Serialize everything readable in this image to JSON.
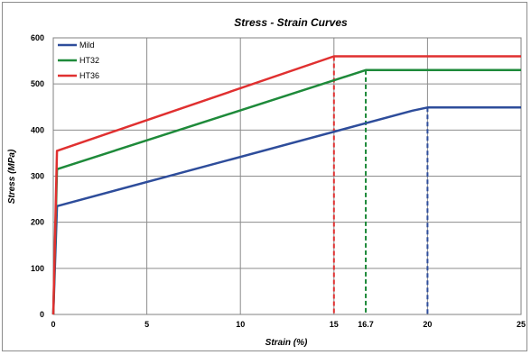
{
  "chart_data": {
    "type": "line",
    "title": "Stress - Strain Curves",
    "xlabel": "Strain (%)",
    "ylabel": "Stress (MPa)",
    "xlim": [
      0,
      25
    ],
    "ylim": [
      0,
      600
    ],
    "x_ticks": [
      "0",
      "5",
      "10",
      "15",
      "20",
      "25"
    ],
    "y_ticks": [
      "0",
      "100",
      "200",
      "300",
      "400",
      "500",
      "600"
    ],
    "extra_x_tick": "16.7",
    "grid": true,
    "legend_position": "top-left",
    "series": [
      {
        "name": "Mild",
        "color": "#2e4d9b",
        "points": [
          [
            0,
            0
          ],
          [
            0.2,
            235
          ],
          [
            19.2,
            442
          ],
          [
            20,
            449
          ],
          [
            25,
            449
          ]
        ],
        "marker_x": 20,
        "marker_y": 449
      },
      {
        "name": "HT32",
        "color": "#1e8a3a",
        "points": [
          [
            0,
            0
          ],
          [
            0.2,
            315
          ],
          [
            16.7,
            530
          ],
          [
            25,
            530
          ]
        ],
        "marker_x": 16.7,
        "marker_y": 530
      },
      {
        "name": "HT36",
        "color": "#e03030",
        "points": [
          [
            0,
            0
          ],
          [
            0.2,
            355
          ],
          [
            15,
            560
          ],
          [
            25,
            560
          ]
        ],
        "marker_x": 15,
        "marker_y": 560
      }
    ]
  }
}
